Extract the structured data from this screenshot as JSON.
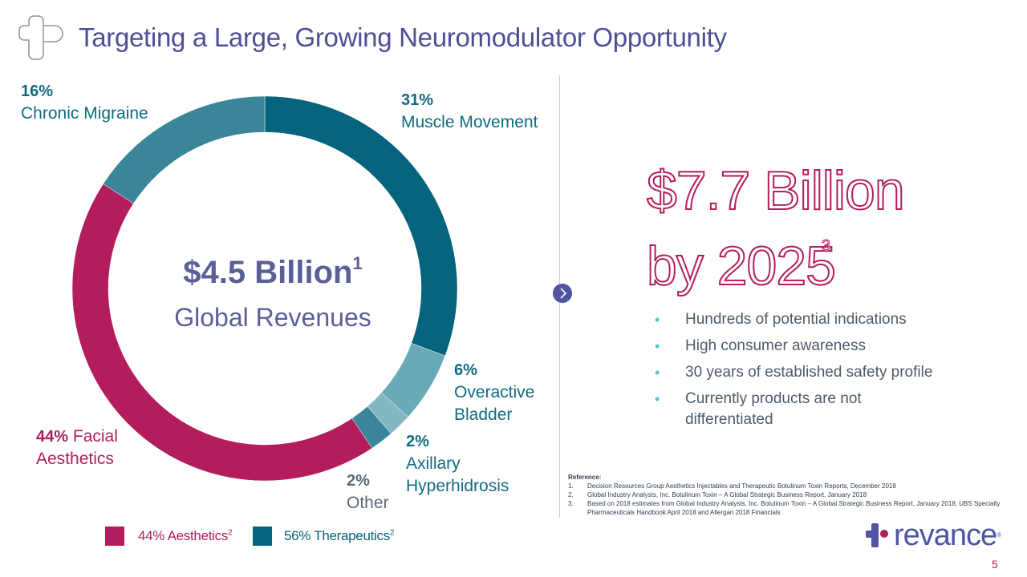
{
  "title": "Targeting a Large, Growing Neuromodulator Opportunity",
  "colors": {
    "title": "#4e4f95",
    "aesthetics": "#b31d5d",
    "therapeutic_dark": "#04637d",
    "therapeutic_mid": "#3a8698",
    "therapeutic_light": "#6aaab8",
    "therapeutic_lighter": "#83b8c3"
  },
  "chart_data": {
    "type": "pie",
    "variant": "donut",
    "center_amount": "$4.5 Billion",
    "center_amount_sup": "1",
    "center_label": "Global Revenues",
    "slices": [
      {
        "key": "muscle",
        "value": 31,
        "pct_label": "31%",
        "label": "Muscle Movement",
        "color": "#04637d"
      },
      {
        "key": "bladder",
        "value": 6,
        "pct_label": "6%",
        "label_lines": [
          "Overactive",
          "Bladder"
        ],
        "color": "#6aaab8"
      },
      {
        "key": "axillary",
        "value": 2,
        "pct_label": "2%",
        "label_lines": [
          "Axillary",
          "Hyperhidrosis"
        ],
        "color": "#83b8c3"
      },
      {
        "key": "other",
        "value": 2,
        "pct_label": "2%",
        "label": "Other",
        "color": "#3a8698"
      },
      {
        "key": "facial",
        "value": 44,
        "pct_label": "44%",
        "label_lines": [
          "Facial",
          "Aesthetics"
        ],
        "color": "#b31d5d"
      },
      {
        "key": "migraine",
        "value": 16,
        "pct_label": "16%",
        "label": "Chronic Migraine",
        "color": "#3a8698"
      }
    ],
    "legend": [
      {
        "label": "44% Aesthetics",
        "sup": "2",
        "color": "#b31d5d"
      },
      {
        "label": "56% Therapeutics",
        "sup": "2",
        "color": "#04637d"
      }
    ]
  },
  "projection": {
    "line1": "$7.7 Billion",
    "line2": "by 2025",
    "sup": "3"
  },
  "bullets": [
    "Hundreds of potential indications",
    "High consumer awareness",
    "30 years of established safety profile",
    "Currently products are not differentiated"
  ],
  "references": {
    "title": "Reference:",
    "items": [
      {
        "num": "1.",
        "text": "Decision Resources Group Aesthetics Injectables and Therapeutic Botulinum Toxin Reports, December 2018"
      },
      {
        "num": "2.",
        "text": "Global Industry Analysts, Inc. Botulinum Toxin – A Global Strategic Business Report, January 2018"
      },
      {
        "num": "3.",
        "text": "Based on 2018 estimates from Global Industry Analysts, Inc. Botulinum Toxin – A Global Strategic Business Report, January 2018, UBS Specialty Pharmaceuticals Handbook April 2018 and Allergan 2018 Financials"
      }
    ]
  },
  "brand": {
    "name": "revance",
    "mark": "®"
  },
  "page_number": "5"
}
